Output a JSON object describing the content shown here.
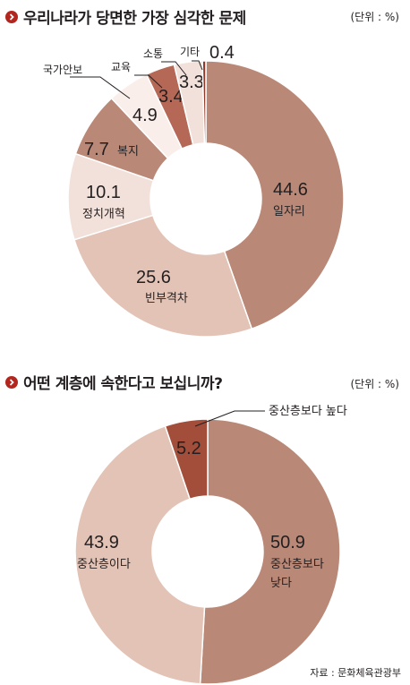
{
  "chart_data": [
    {
      "type": "pie",
      "title": "우리나라가 당면한 가장 심각한 문제",
      "unit": "(단위 : %)",
      "slices": [
        {
          "label": "일자리",
          "value": 44.6,
          "value_text": "44.6",
          "color": "#b98877"
        },
        {
          "label": "빈부격차",
          "value": 25.6,
          "value_text": "25.6",
          "color": "#e2c3b6"
        },
        {
          "label": "정치개혁",
          "value": 10.1,
          "value_text": "10.1",
          "color": "#f2e1da"
        },
        {
          "label": "복지",
          "value": 7.7,
          "value_text": "7.7",
          "color": "#b98877"
        },
        {
          "label": "국가안보",
          "value": 4.9,
          "value_text": "4.9",
          "color": "#f9eeea"
        },
        {
          "label": "교육",
          "value": 3.4,
          "value_text": "3.4",
          "color": "#b46855"
        },
        {
          "label": "소통",
          "value": 3.3,
          "value_text": "3.3",
          "color": "#f2e1da"
        },
        {
          "label": "기타",
          "value": 0.4,
          "value_text": "0.4",
          "color": "#8e3a2a"
        }
      ]
    },
    {
      "type": "pie",
      "title": "어떤 계층에 속한다고 보십니까?",
      "unit": "(단위 : %)",
      "slices": [
        {
          "label": "중산층보다 낮다",
          "value": 50.9,
          "value_text": "50.9",
          "color": "#b98877"
        },
        {
          "label": "중산층이다",
          "value": 43.9,
          "value_text": "43.9",
          "color": "#e2c3b6"
        },
        {
          "label": "중산층보다 높다",
          "value": 5.2,
          "value_text": "5.2",
          "color": "#a24e3a"
        }
      ]
    }
  ],
  "source": "자료 : 문화체육관광부",
  "colors": {
    "bullet": "#b3261e",
    "text": "#231f20"
  }
}
